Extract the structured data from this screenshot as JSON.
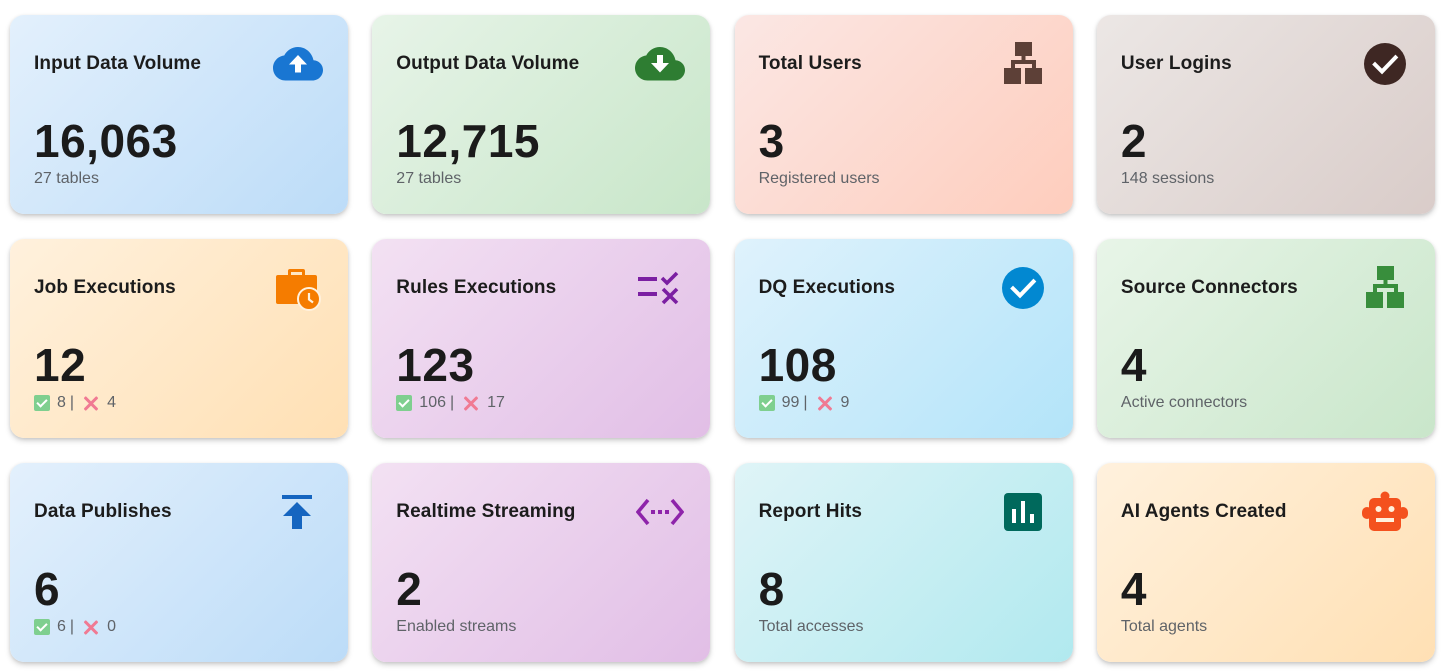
{
  "cards": [
    {
      "title": "Input Data Volume",
      "value": "16,063",
      "subtitle": "27 tables",
      "icon": "cloud-upload-icon",
      "icon_color": "#1976d2"
    },
    {
      "title": "Output Data Volume",
      "value": "12,715",
      "subtitle": "27 tables",
      "icon": "cloud-download-icon",
      "icon_color": "#2e7d32"
    },
    {
      "title": "Total Users",
      "value": "3",
      "subtitle": "Registered users",
      "icon": "hierarchy-icon",
      "icon_color": "#5d4037"
    },
    {
      "title": "User Logins",
      "value": "2",
      "subtitle": "148 sessions",
      "icon": "check-circle-icon",
      "icon_color": "#3e2723"
    },
    {
      "title": "Job Executions",
      "value": "12",
      "stats": {
        "success": "8",
        "separator": "|",
        "failed": "4"
      },
      "icon": "work-history-icon",
      "icon_color": "#f57c00"
    },
    {
      "title": "Rules Executions",
      "value": "123",
      "stats": {
        "success": "106",
        "separator": "|",
        "failed": "17"
      },
      "icon": "rule-icon",
      "icon_color": "#7b1fa2"
    },
    {
      "title": "DQ Executions",
      "value": "108",
      "stats": {
        "success": "99",
        "separator": "|",
        "failed": "9"
      },
      "icon": "check-circle-icon",
      "icon_color": "#0288d1"
    },
    {
      "title": "Source Connectors",
      "value": "4",
      "subtitle": "Active connectors",
      "icon": "hierarchy-icon",
      "icon_color": "#388e3c"
    },
    {
      "title": "Data Publishes",
      "value": "6",
      "stats": {
        "success": "6",
        "separator": "|",
        "failed": "0"
      },
      "icon": "publish-icon",
      "icon_color": "#1565c0"
    },
    {
      "title": "Realtime Streaming",
      "value": "2",
      "subtitle": "Enabled streams",
      "icon": "settings-ethernet-icon",
      "icon_color": "#8e24aa"
    },
    {
      "title": "Report Hits",
      "value": "8",
      "subtitle": "Total accesses",
      "icon": "bar-chart-icon",
      "icon_color": "#00695c"
    },
    {
      "title": "AI Agents Created",
      "value": "4",
      "subtitle": "Total agents",
      "icon": "robot-icon",
      "icon_color": "#f4511e"
    }
  ]
}
